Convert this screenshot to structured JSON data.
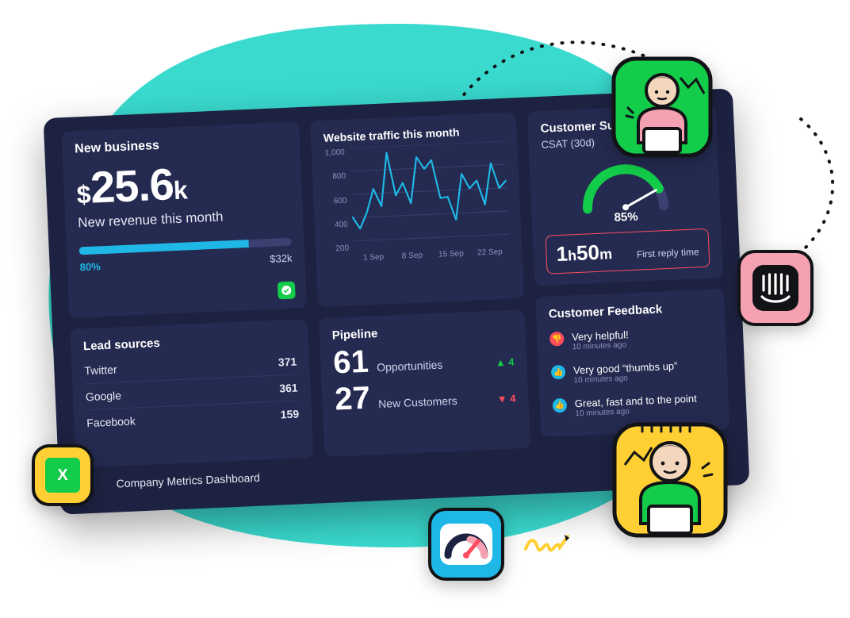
{
  "theme": {
    "bg": "#ffffff",
    "dashboard_bg": "#1d2242",
    "panel_bg": "#242a50",
    "text_primary": "#ffffff",
    "text_muted": "#cfd3ec",
    "text_faint": "#8c91bb",
    "divider": "#32386a",
    "accent_cyan": "#1fb8e6",
    "accent_green": "#12cc4a",
    "accent_red": "#ff4d5e",
    "blob_color": "#3adacf",
    "badge_yellow": "#ffcf33",
    "badge_pink": "#f6a1b2",
    "badge_border": "#121316"
  },
  "dashboard": {
    "rotation_deg": -2.5,
    "footer_title": "Company Metrics Dashboard"
  },
  "new_business": {
    "section_title": "New business",
    "revenue": {
      "currency_prefix": "$",
      "value": "25.6",
      "unit_suffix": "k",
      "caption": "New revenue this month",
      "progress_pct": 80,
      "progress_pct_label": "80%",
      "target_label": "$32k",
      "progress_track_color": "#3a4070",
      "progress_fill_color": "#1fb8e6",
      "brand_chip_color": "#12cc4a"
    }
  },
  "traffic": {
    "title": "Website traffic this month",
    "type": "line",
    "line_color": "#1fb8e6",
    "grid_color": "#3a4070",
    "y": {
      "min": 0,
      "max": 1000,
      "step": 200,
      "ticks": [
        "1,000",
        "800",
        "600",
        "400",
        "200"
      ]
    },
    "x": {
      "labels": [
        "1 Sep",
        "8 Sep",
        "15 Sep",
        "22 Sep"
      ]
    },
    "values": [
      260,
      130,
      300,
      550,
      360,
      930,
      470,
      600,
      380,
      870,
      740,
      830,
      420,
      430,
      180,
      670,
      510,
      590,
      330,
      770,
      500,
      580
    ]
  },
  "lead_sources": {
    "title": "Lead sources",
    "rows": [
      {
        "name": "Twitter",
        "count": "371"
      },
      {
        "name": "Google",
        "count": "361"
      },
      {
        "name": "Facebook",
        "count": "159"
      }
    ]
  },
  "pipeline": {
    "title": "Pipeline",
    "rows": [
      {
        "value": "61",
        "label": "Opportunities",
        "delta": "4",
        "dir": "up"
      },
      {
        "value": "27",
        "label": "New Customers",
        "delta": "4",
        "dir": "down"
      }
    ]
  },
  "support": {
    "title": "Customer Support",
    "csat_label": "CSAT (30d)",
    "gauge": {
      "pct": 85,
      "pct_label": "85%",
      "track_color": "#3a4070",
      "fill_color": "#12cc4a",
      "needle_color": "#ffffff"
    },
    "first_reply": {
      "h": "1",
      "h_unit": "h",
      "m": "50",
      "m_unit": "m",
      "label": "First reply time",
      "border_color": "#ff4d5e"
    }
  },
  "feedback": {
    "title": "Customer Feedback",
    "items": [
      {
        "sentiment": "neg",
        "text": "Very helpful!",
        "time": "10 minutes ago"
      },
      {
        "sentiment": "pos",
        "text": "Very good “thumbs up”",
        "time": "10 minutes ago"
      },
      {
        "sentiment": "pos",
        "text": "Great, fast and to the point",
        "time": "10 minutes ago"
      }
    ],
    "neg_color": "#ff4d5e",
    "pos_color": "#1fb8e6"
  },
  "decoration": {
    "badges": {
      "excel": {
        "bg": "#ffcf33",
        "icon_bg": "#12cc4a",
        "label": "X"
      },
      "gauge": {
        "bg": "#1fb8e6"
      },
      "intercom": {
        "bg": "#f6a1b2",
        "icon_bg": "#121316"
      },
      "person1": {
        "bg": "#12cc4a",
        "shirt": "#f6a1b2"
      },
      "person2": {
        "bg": "#ffcf33",
        "shirt": "#12cc4a"
      }
    }
  }
}
